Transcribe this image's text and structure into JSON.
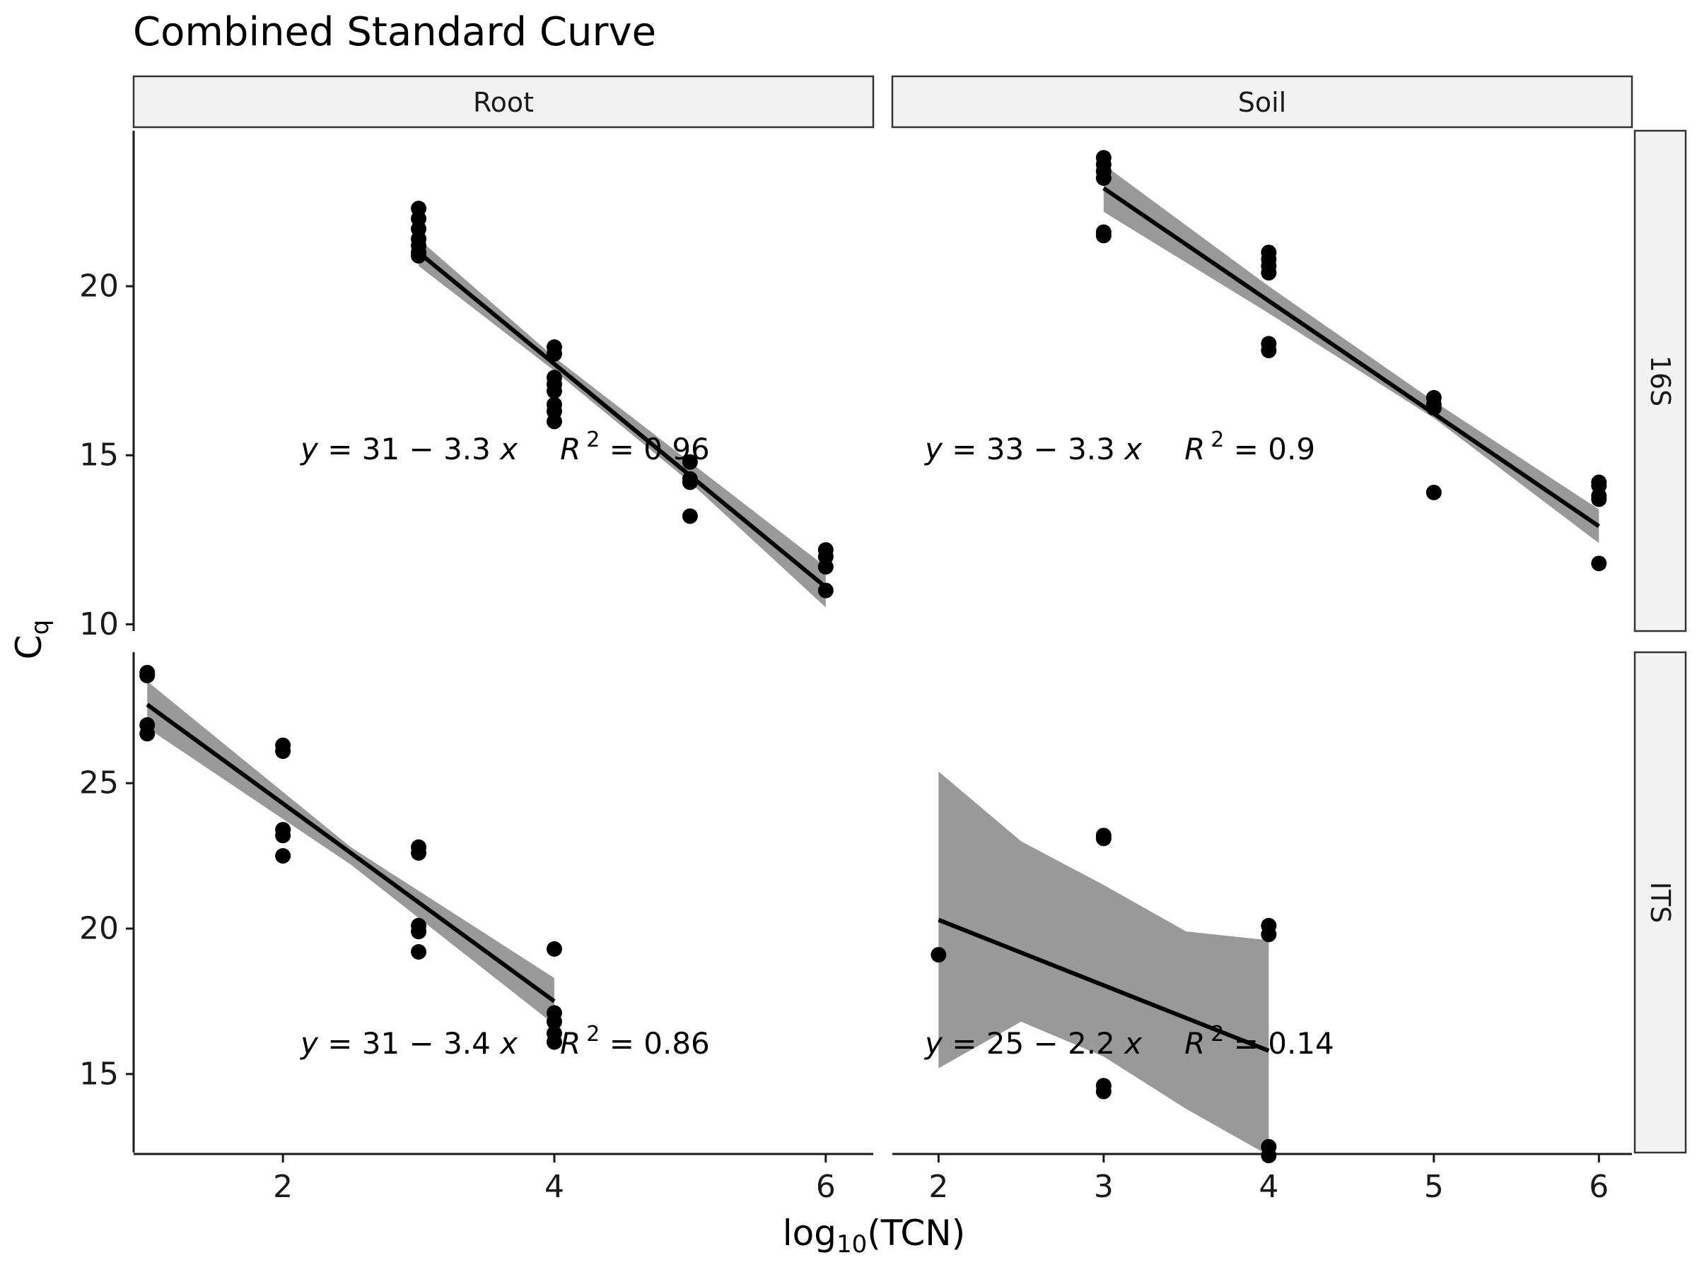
{
  "chart_data": {
    "type": "scatter",
    "title": "Combined Standard Curve",
    "xlabel": "log10(TCN)",
    "xlabel_main": "log",
    "xlabel_sub": "10",
    "xlabel_tail": "(TCN)",
    "ylabel": "Cq",
    "ylabel_main": "C",
    "ylabel_sub": "q",
    "columns": [
      "Root",
      "Soil"
    ],
    "rows": [
      "16S",
      "ITS"
    ],
    "colors": {
      "points": "#000000",
      "line": "#000000",
      "band": "#999999",
      "strip_fill": "#f2f2f2"
    },
    "x_ticks": {
      "Root": [
        2,
        4,
        6
      ],
      "Soil": [
        2,
        3,
        4,
        5,
        6
      ]
    },
    "y_ticks": {
      "16S": [
        10,
        15,
        20
      ],
      "ITS": [
        15,
        20,
        25
      ]
    },
    "xlim": {
      "Root": [
        0.9,
        6.35
      ],
      "Soil": [
        1.72,
        6.2
      ]
    },
    "ylim": {
      "16S": [
        9.8,
        24.6
      ],
      "ITS": [
        12.3,
        29.5
      ]
    },
    "panels": [
      {
        "column": "Root",
        "row": "16S",
        "points": [
          [
            3,
            20.9
          ],
          [
            3,
            21.0
          ],
          [
            3,
            21.2
          ],
          [
            3,
            21.4
          ],
          [
            3,
            21.7
          ],
          [
            3,
            22.0
          ],
          [
            3,
            22.3
          ],
          [
            4,
            16.0
          ],
          [
            4,
            16.3
          ],
          [
            4,
            16.5
          ],
          [
            4,
            16.9
          ],
          [
            4,
            17.1
          ],
          [
            4,
            17.3
          ],
          [
            4,
            18.0
          ],
          [
            4,
            18.2
          ],
          [
            5,
            13.2
          ],
          [
            5,
            14.2
          ],
          [
            5,
            14.3
          ],
          [
            5,
            14.8
          ],
          [
            6,
            11.0
          ],
          [
            6,
            11.7
          ],
          [
            6,
            12.0
          ],
          [
            6,
            12.2
          ]
        ],
        "fit": {
          "x": [
            3,
            6
          ],
          "y": [
            21.0,
            11.1
          ]
        },
        "band": {
          "x": [
            3,
            4,
            5,
            6
          ],
          "upper": [
            21.4,
            17.9,
            14.8,
            11.7
          ],
          "lower": [
            20.6,
            17.5,
            14.2,
            10.5
          ]
        },
        "equation": {
          "lhs": "y",
          "eq": "= 31 − 3.3",
          "var": "x",
          "r": "R",
          "exp": "2",
          "value": "= 0.96"
        }
      },
      {
        "column": "Soil",
        "row": "16S",
        "points": [
          [
            3,
            21.5
          ],
          [
            3,
            21.6
          ],
          [
            3,
            23.2
          ],
          [
            3,
            23.4
          ],
          [
            3,
            23.6
          ],
          [
            3,
            23.8
          ],
          [
            4,
            18.1
          ],
          [
            4,
            18.3
          ],
          [
            4,
            20.4
          ],
          [
            4,
            20.6
          ],
          [
            4,
            20.8
          ],
          [
            4,
            21.0
          ],
          [
            5,
            13.9
          ],
          [
            5,
            16.4
          ],
          [
            5,
            16.5
          ],
          [
            5,
            16.7
          ],
          [
            6,
            11.8
          ],
          [
            6,
            13.7
          ],
          [
            6,
            13.8
          ],
          [
            6,
            14.1
          ],
          [
            6,
            14.2
          ]
        ],
        "fit": {
          "x": [
            3,
            6
          ],
          "y": [
            22.9,
            12.9
          ]
        },
        "band": {
          "x": [
            3,
            4,
            5,
            6
          ],
          "upper": [
            23.6,
            20.0,
            16.6,
            13.4
          ],
          "lower": [
            22.2,
            19.2,
            16.1,
            12.4
          ]
        },
        "equation": {
          "lhs": "y",
          "eq": "= 33 − 3.3",
          "var": "x",
          "r": "R",
          "exp": "2",
          "value": "= 0.9"
        }
      },
      {
        "column": "Root",
        "row": "ITS",
        "points": [
          [
            1,
            26.7
          ],
          [
            1,
            27.0
          ],
          [
            1,
            28.7
          ],
          [
            1,
            28.8
          ],
          [
            2,
            22.5
          ],
          [
            2,
            23.2
          ],
          [
            2,
            23.4
          ],
          [
            2,
            26.1
          ],
          [
            2,
            26.3
          ],
          [
            3,
            19.2
          ],
          [
            3,
            19.9
          ],
          [
            3,
            20.1
          ],
          [
            3,
            22.6
          ],
          [
            3,
            22.8
          ],
          [
            4,
            16.1
          ],
          [
            4,
            16.4
          ],
          [
            4,
            16.8
          ],
          [
            4,
            17.1
          ],
          [
            4,
            19.3
          ]
        ],
        "fit": {
          "x": [
            1,
            4
          ],
          "y": [
            27.7,
            17.5
          ]
        },
        "band": {
          "x": [
            1,
            2.5,
            4
          ],
          "upper": [
            28.5,
            22.8,
            18.3
          ],
          "lower": [
            26.9,
            22.2,
            16.7
          ]
        },
        "equation": {
          "lhs": "y",
          "eq": "= 31 − 3.4",
          "var": "x",
          "r": "R",
          "exp": "2",
          "value": "= 0.86"
        }
      },
      {
        "column": "Soil",
        "row": "ITS",
        "points": [
          [
            2,
            19.1
          ],
          [
            3,
            14.4
          ],
          [
            3,
            14.6
          ],
          [
            3,
            23.1
          ],
          [
            3,
            23.2
          ],
          [
            4,
            12.2
          ],
          [
            4,
            12.5
          ],
          [
            4,
            19.8
          ],
          [
            4,
            20.1
          ]
        ],
        "fit": {
          "x": [
            2,
            4
          ],
          "y": [
            20.3,
            15.8
          ]
        },
        "band": {
          "x": [
            2,
            2.5,
            3,
            3.5,
            4
          ],
          "upper": [
            25.4,
            23.0,
            21.5,
            19.9,
            19.6
          ],
          "lower": [
            15.2,
            16.8,
            15.6,
            13.8,
            12.2
          ]
        },
        "equation": {
          "lhs": "y",
          "eq": "= 25 − 2.2",
          "var": "x",
          "r": "R",
          "exp": "2",
          "value": "= 0.14"
        }
      }
    ]
  }
}
